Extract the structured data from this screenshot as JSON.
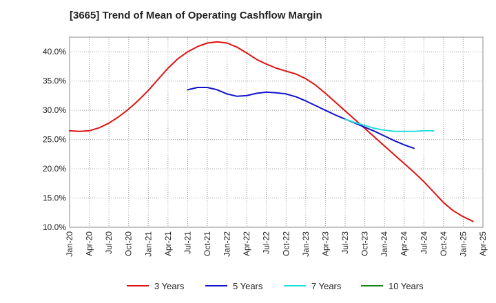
{
  "chart_data": {
    "type": "line",
    "title": "[3665]  Trend of Mean of Operating Cashflow Margin",
    "xlabel": "",
    "ylabel": "",
    "ylim": [
      10.0,
      42.5
    ],
    "y_ticks": [
      "10.0%",
      "15.0%",
      "20.0%",
      "25.0%",
      "30.0%",
      "35.0%",
      "40.0%"
    ],
    "y_tick_values": [
      10,
      15,
      20,
      25,
      30,
      35,
      40
    ],
    "x_ticks": [
      "Jan-20",
      "Apr-20",
      "Jul-20",
      "Oct-20",
      "Jan-21",
      "Apr-21",
      "Jul-21",
      "Oct-21",
      "Jan-22",
      "Apr-22",
      "Jul-22",
      "Oct-22",
      "Jan-23",
      "Apr-23",
      "Jul-23",
      "Oct-23",
      "Jan-24",
      "Apr-24",
      "Jul-24",
      "Oct-24",
      "Jan-25",
      "Apr-25"
    ],
    "series": [
      {
        "name": "3 Years",
        "color": "#dd1111",
        "start_index": 0,
        "values": [
          26.5,
          26.4,
          26.5,
          27.0,
          27.8,
          28.9,
          30.2,
          31.7,
          33.4,
          35.3,
          37.2,
          38.8,
          40.0,
          40.9,
          41.5,
          41.7,
          41.5,
          40.8,
          39.8,
          38.7,
          37.9,
          37.2,
          36.7,
          36.2,
          35.4,
          34.3,
          32.9,
          31.4,
          29.9,
          28.4,
          26.9,
          25.4,
          23.9,
          22.4,
          20.9,
          19.4,
          17.8,
          16.0,
          14.2,
          12.8,
          11.8,
          11.0
        ]
      },
      {
        "name": "5 Years",
        "color": "#1111cc",
        "start_index": 18,
        "values": [
          33.5,
          33.9,
          33.9,
          33.5,
          32.8,
          32.4,
          32.5,
          32.9,
          33.1,
          33.0,
          32.8,
          32.3,
          31.6,
          30.8,
          30.0,
          29.2,
          28.5,
          27.8,
          27.1,
          26.4,
          25.6,
          24.8,
          24.1,
          23.5
        ]
      },
      {
        "name": "7 Years",
        "color": "#22dddd",
        "start_index": 42,
        "values": [
          28.5,
          27.9,
          27.4,
          26.9,
          26.6,
          26.4,
          26.4,
          26.4,
          26.5,
          26.5
        ]
      },
      {
        "name": "10 Years",
        "color": "#118811",
        "start_index": 0,
        "values": []
      }
    ],
    "grid": true,
    "legend_position": "bottom"
  }
}
